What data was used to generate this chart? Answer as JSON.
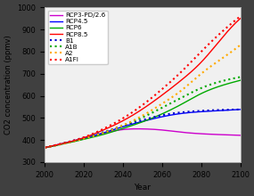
{
  "xlabel": "Year",
  "ylabel": "CO2 concentration (ppmv)",
  "xlim": [
    2000,
    2100
  ],
  "ylim": [
    300,
    1000
  ],
  "yticks": [
    300,
    400,
    500,
    600,
    700,
    800,
    900,
    1000
  ],
  "xticks": [
    2000,
    2020,
    2040,
    2060,
    2080,
    2100
  ],
  "plot_bg": "#f0f0f0",
  "fig_bg": "#404040",
  "series": [
    {
      "label": "RCP3-PD/2.6",
      "color": "#cc00cc",
      "linestyle": "-",
      "lw": 1.0,
      "pts": [
        [
          2000,
          365
        ],
        [
          2010,
          385
        ],
        [
          2020,
          405
        ],
        [
          2030,
          430
        ],
        [
          2040,
          447
        ],
        [
          2050,
          450
        ],
        [
          2060,
          445
        ],
        [
          2070,
          435
        ],
        [
          2080,
          428
        ],
        [
          2090,
          424
        ],
        [
          2100,
          421
        ]
      ]
    },
    {
      "label": "RCP4.5",
      "color": "#0000ff",
      "linestyle": "-",
      "lw": 1.0,
      "pts": [
        [
          2000,
          365
        ],
        [
          2010,
          385
        ],
        [
          2020,
          408
        ],
        [
          2030,
          432
        ],
        [
          2040,
          460
        ],
        [
          2050,
          484
        ],
        [
          2060,
          505
        ],
        [
          2070,
          520
        ],
        [
          2080,
          528
        ],
        [
          2090,
          533
        ],
        [
          2100,
          538
        ]
      ]
    },
    {
      "label": "RCP6",
      "color": "#00aa00",
      "linestyle": "-",
      "lw": 1.0,
      "pts": [
        [
          2000,
          365
        ],
        [
          2010,
          383
        ],
        [
          2020,
          403
        ],
        [
          2030,
          425
        ],
        [
          2040,
          452
        ],
        [
          2050,
          482
        ],
        [
          2060,
          518
        ],
        [
          2070,
          562
        ],
        [
          2080,
          610
        ],
        [
          2090,
          645
        ],
        [
          2100,
          670
        ]
      ]
    },
    {
      "label": "RCP8.5",
      "color": "#ff0000",
      "linestyle": "-",
      "lw": 1.0,
      "pts": [
        [
          2000,
          365
        ],
        [
          2010,
          385
        ],
        [
          2020,
          410
        ],
        [
          2030,
          445
        ],
        [
          2040,
          487
        ],
        [
          2050,
          540
        ],
        [
          2060,
          603
        ],
        [
          2070,
          672
        ],
        [
          2080,
          752
        ],
        [
          2090,
          855
        ],
        [
          2100,
          950
        ]
      ]
    },
    {
      "label": "B1",
      "color": "#0000cc",
      "linestyle": ":",
      "lw": 1.5,
      "pts": [
        [
          2000,
          365
        ],
        [
          2010,
          386
        ],
        [
          2020,
          410
        ],
        [
          2030,
          435
        ],
        [
          2040,
          464
        ],
        [
          2050,
          490
        ],
        [
          2060,
          512
        ],
        [
          2070,
          525
        ],
        [
          2080,
          532
        ],
        [
          2090,
          536
        ],
        [
          2100,
          538
        ]
      ]
    },
    {
      "label": "A1B",
      "color": "#00aa00",
      "linestyle": ":",
      "lw": 1.5,
      "pts": [
        [
          2000,
          365
        ],
        [
          2010,
          384
        ],
        [
          2020,
          406
        ],
        [
          2030,
          432
        ],
        [
          2040,
          465
        ],
        [
          2050,
          502
        ],
        [
          2060,
          546
        ],
        [
          2070,
          592
        ],
        [
          2080,
          635
        ],
        [
          2090,
          665
        ],
        [
          2100,
          685
        ]
      ]
    },
    {
      "label": "A2",
      "color": "#ffaa00",
      "linestyle": ":",
      "lw": 1.5,
      "pts": [
        [
          2000,
          365
        ],
        [
          2010,
          384
        ],
        [
          2020,
          406
        ],
        [
          2030,
          432
        ],
        [
          2040,
          466
        ],
        [
          2050,
          510
        ],
        [
          2060,
          564
        ],
        [
          2070,
          625
        ],
        [
          2080,
          700
        ],
        [
          2090,
          765
        ],
        [
          2100,
          830
        ]
      ]
    },
    {
      "label": "A1FI",
      "color": "#ff0000",
      "linestyle": ":",
      "lw": 1.5,
      "pts": [
        [
          2000,
          365
        ],
        [
          2010,
          386
        ],
        [
          2020,
          412
        ],
        [
          2030,
          450
        ],
        [
          2040,
          498
        ],
        [
          2050,
          558
        ],
        [
          2060,
          630
        ],
        [
          2070,
          710
        ],
        [
          2080,
          800
        ],
        [
          2090,
          885
        ],
        [
          2100,
          960
        ]
      ]
    }
  ]
}
